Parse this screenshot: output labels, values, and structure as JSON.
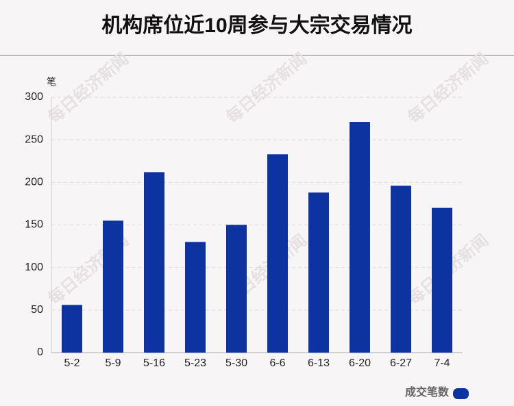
{
  "chart_data": {
    "type": "bar",
    "title": "机构席位近10周参与大宗交易情况",
    "y_unit": "笔",
    "watermark": "每日经济新闻",
    "categories": [
      "5-2",
      "5-9",
      "5-16",
      "5-23",
      "5-30",
      "6-6",
      "6-13",
      "6-20",
      "6-27",
      "7-4"
    ],
    "series": [
      {
        "name": "成交笔数",
        "color": "#0d33a0",
        "values": [
          56,
          155,
          212,
          130,
          150,
          233,
          188,
          271,
          196,
          170
        ]
      }
    ],
    "ylim": [
      0,
      300
    ],
    "yticks": [
      0,
      50,
      100,
      150,
      200,
      250,
      300
    ],
    "grid": true,
    "legend": "bottom-right"
  }
}
